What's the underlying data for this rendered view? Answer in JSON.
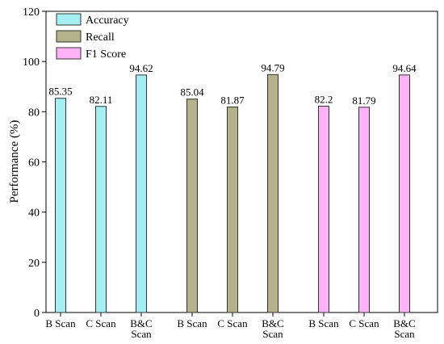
{
  "chart_data": {
    "type": "bar",
    "y_label": "Performance (%)",
    "categories": [
      "B Scan",
      "C Scan",
      "B&C Scan",
      "B Scan",
      "C Scan",
      "B&C Scan",
      "B Scan",
      "C Scan",
      "B&C Scan"
    ],
    "series": [
      {
        "name": "Accuracy",
        "color": "#a4eef4",
        "values": [
          85.35,
          82.11,
          94.62,
          null,
          null,
          null,
          null,
          null,
          null
        ]
      },
      {
        "name": "Recall",
        "color": "#b5b18c",
        "values": [
          null,
          null,
          null,
          85.04,
          81.87,
          94.79,
          null,
          null,
          null
        ]
      },
      {
        "name": "F1 Score",
        "color": "#ffb3f6",
        "values": [
          null,
          null,
          null,
          null,
          null,
          null,
          82.2,
          81.79,
          94.64
        ]
      }
    ],
    "ylim": [
      0,
      120
    ],
    "yticks": [
      0,
      20,
      40,
      60,
      80,
      100,
      120
    ],
    "legend": "upper left"
  }
}
